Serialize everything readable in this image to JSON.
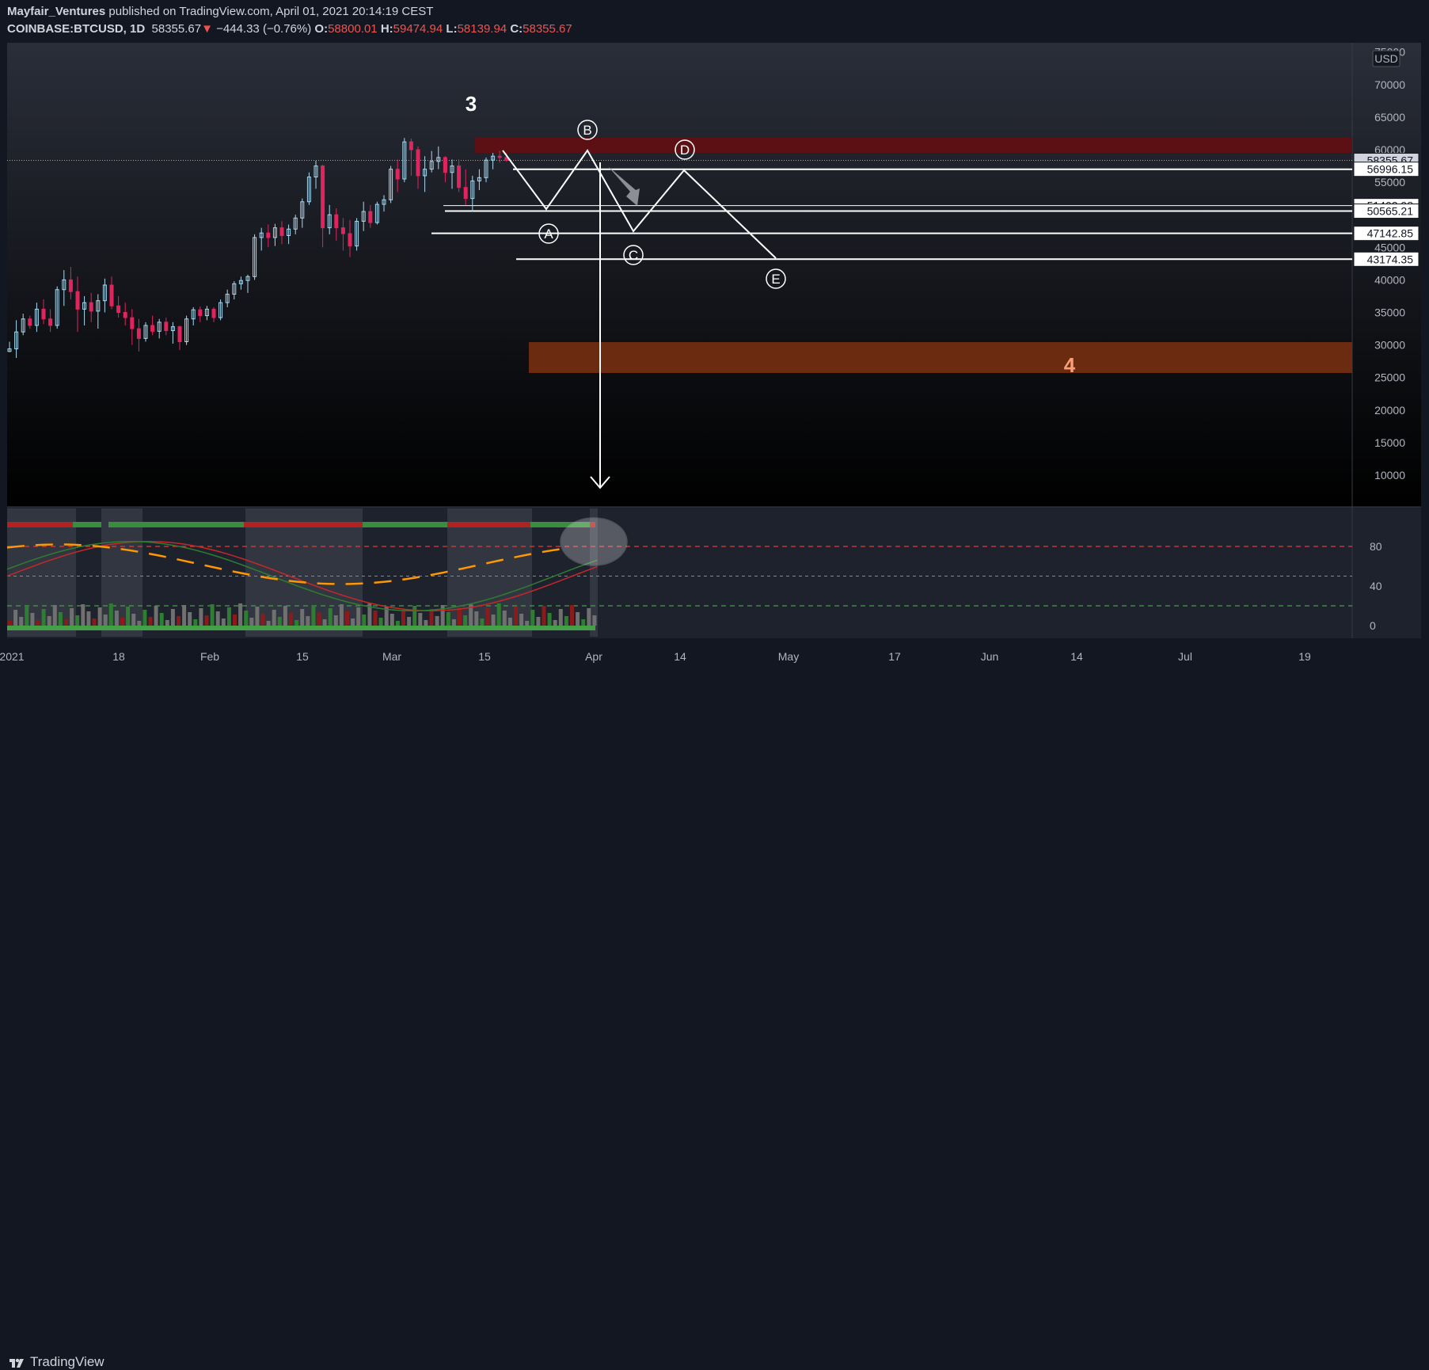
{
  "header": {
    "author": "Mayfair_Ventures",
    "published_text": "published on TradingView.com, April 01, 2021 20:14:19 CEST",
    "symbol": "COINBASE:BTCUSD, 1D",
    "last_price": "58355.67",
    "change": "−444.33 (−0.76%)",
    "o_label": "O:",
    "o_value": "58800.01",
    "h_label": "H:",
    "h_value": "59474.94",
    "l_label": "L:",
    "l_value": "58139.94",
    "c_label": "C:",
    "c_value": "58355.67",
    "down_arrow": "▼"
  },
  "footer": {
    "brand": "TradingView"
  },
  "chart_data": {
    "type": "candlestick",
    "currency": "USD",
    "ylim": [
      5000,
      76000
    ],
    "price_ticks": [
      10000,
      15000,
      20000,
      25000,
      30000,
      35000,
      40000,
      45000,
      50000,
      55000,
      60000,
      65000,
      70000,
      75000
    ],
    "x_ticks": [
      "2021",
      "18",
      "Feb",
      "15",
      "Mar",
      "15",
      "Apr",
      "14",
      "May",
      "17",
      "Jun",
      "14",
      "Jul",
      "19"
    ],
    "price_labels": [
      "58355.67",
      "56996.15",
      "51402.98",
      "50565.21",
      "47142.85",
      "43174.35"
    ],
    "levels": [
      56996.15,
      51402.98,
      50565.21,
      47142.85,
      43174.35
    ],
    "candles_ohlc": [
      [
        29000,
        30500,
        28900,
        29400
      ],
      [
        29400,
        33800,
        28000,
        32000
      ],
      [
        32000,
        34800,
        31500,
        34000
      ],
      [
        34000,
        34500,
        32500,
        33000
      ],
      [
        33000,
        36500,
        32000,
        35500
      ],
      [
        35500,
        37000,
        33200,
        34000
      ],
      [
        34000,
        35500,
        32000,
        33000
      ],
      [
        33000,
        39000,
        32500,
        38500
      ],
      [
        38500,
        41500,
        36000,
        40000
      ],
      [
        40000,
        42000,
        37000,
        38200
      ],
      [
        38200,
        40500,
        32000,
        35500
      ],
      [
        35500,
        37500,
        33000,
        36500
      ],
      [
        36500,
        38000,
        33500,
        35200
      ],
      [
        35200,
        37800,
        32500,
        36800
      ],
      [
        36800,
        40200,
        35000,
        39200
      ],
      [
        39200,
        40500,
        35500,
        36000
      ],
      [
        36000,
        37500,
        34200,
        35000
      ],
      [
        35000,
        36500,
        33000,
        34200
      ],
      [
        34200,
        35500,
        30000,
        32500
      ],
      [
        32500,
        34000,
        29000,
        31000
      ],
      [
        31000,
        33500,
        30500,
        33000
      ],
      [
        33000,
        34500,
        31500,
        32100
      ],
      [
        32100,
        34000,
        31000,
        33500
      ],
      [
        33500,
        34200,
        31500,
        32200
      ],
      [
        32200,
        33500,
        30200,
        32800
      ],
      [
        32800,
        33000,
        29200,
        30500
      ],
      [
        30500,
        34500,
        30000,
        34000
      ],
      [
        34000,
        35800,
        33000,
        35400
      ],
      [
        35400,
        35900,
        33500,
        34500
      ],
      [
        34500,
        36000,
        33800,
        35500
      ],
      [
        35500,
        35800,
        33500,
        34200
      ],
      [
        34200,
        37000,
        33800,
        36500
      ],
      [
        36500,
        38500,
        35800,
        37800
      ],
      [
        37800,
        39800,
        37000,
        39400
      ],
      [
        39400,
        40500,
        38500,
        39900
      ],
      [
        39900,
        40800,
        38000,
        40500
      ],
      [
        40500,
        47000,
        40000,
        46500
      ],
      [
        46500,
        48000,
        44500,
        47200
      ],
      [
        47200,
        48500,
        45000,
        46500
      ],
      [
        46500,
        48600,
        45200,
        48000
      ],
      [
        48000,
        49000,
        45500,
        46800
      ],
      [
        46800,
        48500,
        45500,
        47800
      ],
      [
        47800,
        50000,
        47000,
        49500
      ],
      [
        49500,
        52500,
        48000,
        52000
      ],
      [
        52000,
        56500,
        51500,
        55800
      ],
      [
        55800,
        58300,
        54000,
        57500
      ],
      [
        57500,
        57700,
        45000,
        48000
      ],
      [
        48000,
        51500,
        47000,
        50000
      ],
      [
        50000,
        51000,
        46000,
        48000
      ],
      [
        48000,
        49500,
        44500,
        47100
      ],
      [
        47100,
        49200,
        43500,
        45200
      ],
      [
        45200,
        49500,
        44500,
        49000
      ],
      [
        49000,
        52000,
        47500,
        50500
      ],
      [
        50500,
        51500,
        48000,
        48800
      ],
      [
        48800,
        52000,
        48500,
        51600
      ],
      [
        51600,
        53000,
        50500,
        52300
      ],
      [
        52300,
        57500,
        51800,
        57000
      ],
      [
        57000,
        58500,
        53500,
        55500
      ],
      [
        55500,
        61800,
        55000,
        61200
      ],
      [
        61200,
        61700,
        56000,
        60000
      ],
      [
        60000,
        60500,
        54000,
        56000
      ],
      [
        56000,
        59000,
        53500,
        57000
      ],
      [
        57000,
        59800,
        56500,
        58200
      ],
      [
        58200,
        60500,
        57000,
        58800
      ],
      [
        58800,
        59000,
        55000,
        56500
      ],
      [
        56500,
        58500,
        54000,
        57500
      ],
      [
        57500,
        58500,
        53500,
        54200
      ],
      [
        54200,
        57000,
        51500,
        52500
      ],
      [
        52500,
        56000,
        50500,
        55200
      ],
      [
        55200,
        57000,
        53800,
        55700
      ],
      [
        55700,
        58800,
        55000,
        58400
      ],
      [
        58400,
        59500,
        57000,
        59000
      ],
      [
        59000,
        59800,
        58000,
        58800
      ],
      [
        58800,
        59474.94,
        58139.94,
        58355.67
      ]
    ],
    "annotations": {
      "wave_label_3": "3",
      "wave_label_4": "4",
      "point_A": "A",
      "point_B": "B",
      "point_C": "C",
      "point_D": "D",
      "point_E": "E"
    },
    "oscillator": {
      "ylim": [
        -20,
        110
      ],
      "ticks": [
        0,
        40,
        80
      ],
      "levels": [
        80,
        50,
        20
      ]
    }
  }
}
